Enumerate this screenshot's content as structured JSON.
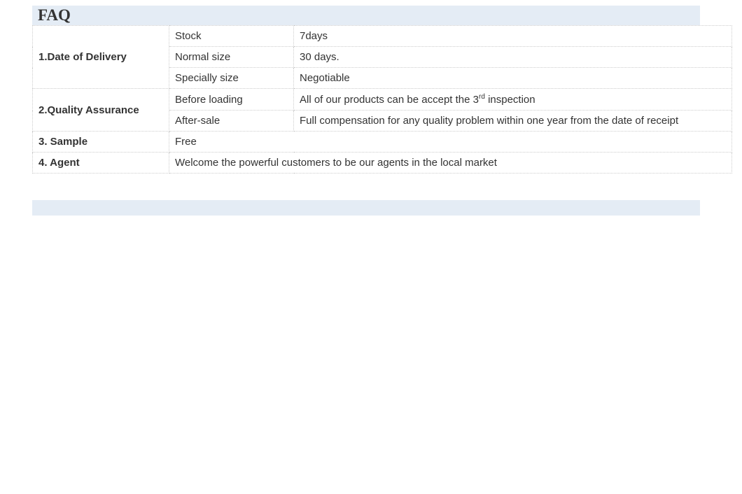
{
  "header": {
    "title": "FAQ"
  },
  "table": {
    "rows": [
      {
        "label": "1.Date of Delivery",
        "sub": [
          {
            "key": "Stock",
            "value": "7days"
          },
          {
            "key": "Normal size",
            "value": "30 days."
          },
          {
            "key": "Specially size",
            "value": "Negotiable"
          }
        ]
      },
      {
        "label": "2.Quality Assurance",
        "sub": [
          {
            "key": "Before loading",
            "value_html": "All of our products can be accept the 3<sup>rd</sup> inspection"
          },
          {
            "key": "After-sale",
            "value": "Full compensation for any quality problem within one year from the date of receipt"
          }
        ]
      },
      {
        "label": "3.  Sample",
        "value": "Free"
      },
      {
        "label": "4.  Agent",
        "value": "Welcome the powerful customers to be our agents in the local market"
      }
    ]
  },
  "colors": {
    "header_bg": "#e4ecf5",
    "border": "#cccccc",
    "text": "#333333",
    "background": "#ffffff"
  }
}
